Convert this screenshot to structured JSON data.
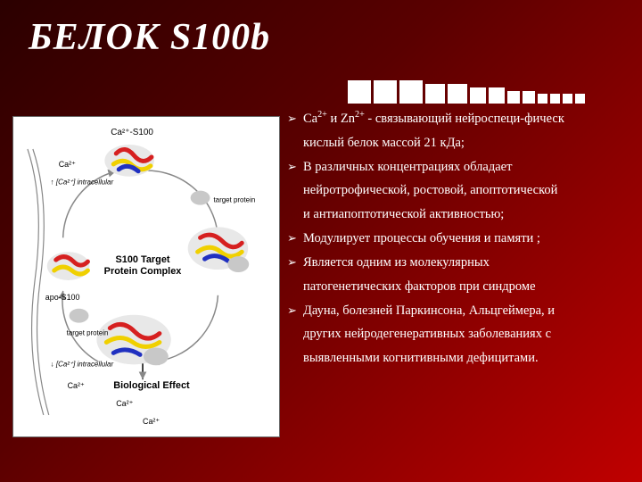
{
  "title": "БЕЛОК S100b",
  "decor": {
    "count": 13,
    "color": "#ffffff",
    "sizes": [
      26,
      26,
      26,
      22,
      22,
      18,
      18,
      14,
      14,
      11,
      11,
      11,
      11
    ]
  },
  "bullets": {
    "arrow": "➢",
    "b1_head": "Ca",
    "b1_mid": " и Zn",
    "b1_tail": " - связывающий нейроспеци-фическ",
    "b1_sup": "2+",
    "b1_c1": "кислый белок массой 21 кДа;",
    "b2": "В различных концентрациях обладает",
    "b2_c1": "нейротрофической, ростовой, апоптотической",
    "b2_c2": "и антиапоптотической активностью;",
    "b3": "Модулирует процессы обучения и памяти ;",
    "b4": "Является одним из молекулярных",
    "b4_c1": "патогенетических факторов при синдроме",
    "b5": "Дауна, болезней Паркинсона, Альцгеймера, и",
    "b5_c1": "других нейродегенеративных заболеваниях с",
    "b5_c2": "выявленными когнитивными дефицитами."
  },
  "diagram": {
    "background": "#ffffff",
    "labels": {
      "top": "Ca²⁺-S100",
      "center1": "S100 Target",
      "center2": "Protein Complex",
      "bottom": "Biological Effect",
      "left_top": "↑ [Ca²⁺] intracellular",
      "left_bot": "↓ [Ca²⁺] intracellular",
      "apo": "apo-S100",
      "target": "target protein",
      "ca": "Ca²⁺"
    },
    "protein_colors": {
      "helix1": "#d62020",
      "helix2": "#f0d000",
      "helix3": "#2030c0",
      "chain": "#b0b0b0"
    }
  }
}
